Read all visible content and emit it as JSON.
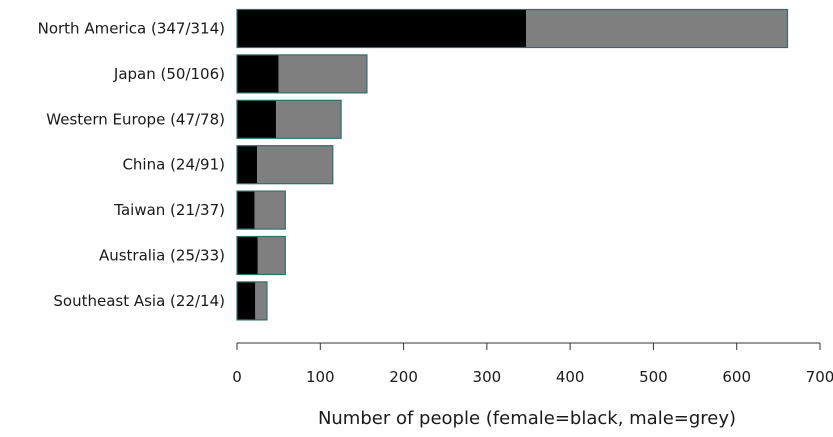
{
  "chart_data": {
    "type": "bar",
    "orientation": "horizontal",
    "stacked": true,
    "categories": [
      "North America (347/314)",
      "Japan (50/106)",
      "Western Europe (47/78)",
      "China (24/91)",
      "Taiwan (21/37)",
      "Australia (25/33)",
      "Southeast Asia (22/14)"
    ],
    "series": [
      {
        "values": [
          347,
          50,
          47,
          24,
          21,
          25,
          22
        ],
        "color": "#000000"
      },
      {
        "values": [
          314,
          106,
          78,
          91,
          37,
          33,
          14
        ],
        "color": "#7f7f7f"
      }
    ],
    "xlabel": "Number of people (female=black, male=grey)",
    "ylabel": "",
    "xlim": [
      0,
      700
    ],
    "xticks": [
      0,
      100,
      200,
      300,
      400,
      500,
      600,
      700
    ],
    "bar_outline_color": "#2f6f6b",
    "grid": false,
    "legend": "none"
  }
}
